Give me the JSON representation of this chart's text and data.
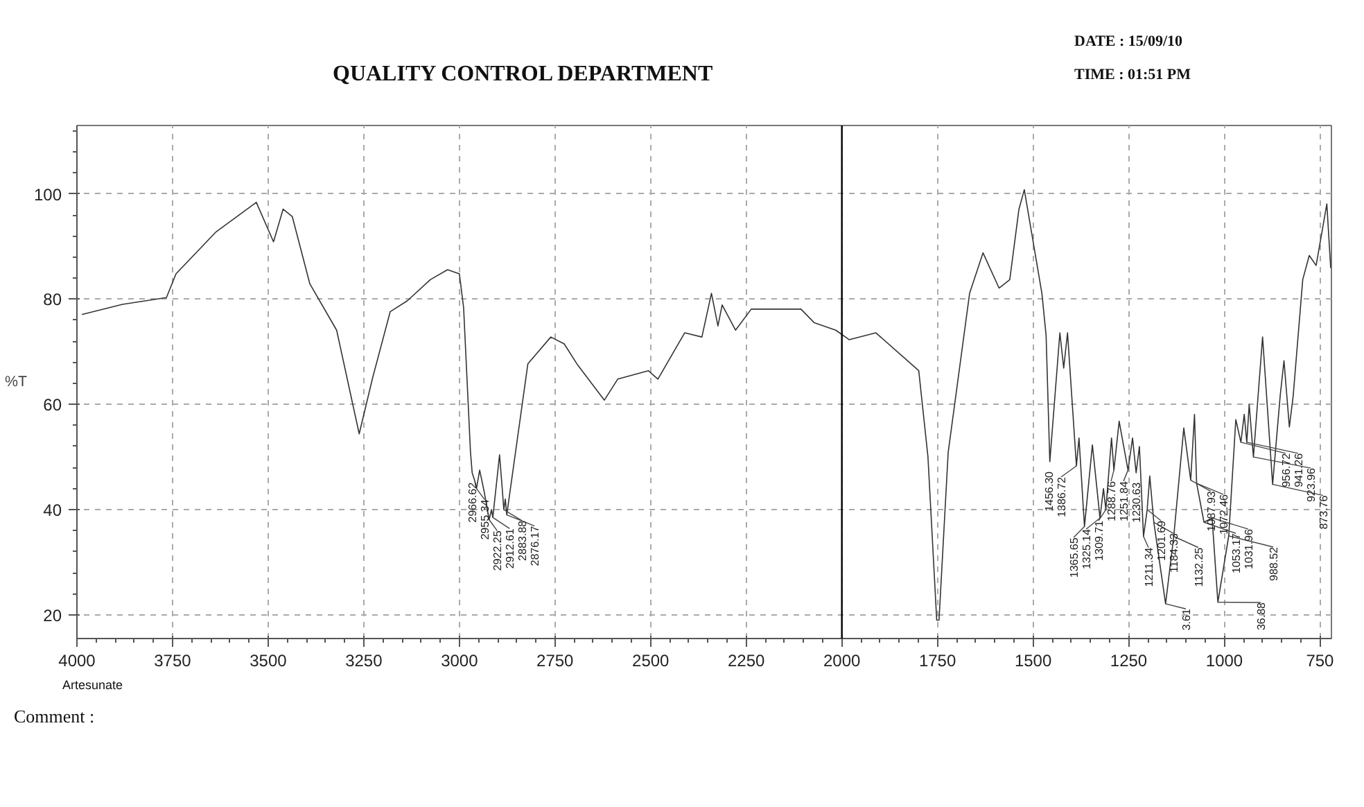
{
  "chart_data": {
    "type": "line",
    "title": "QUALITY CONTROL DEPARTMENT",
    "ylabel": "%T",
    "annotations": [
      "DATE : 15/09/10",
      "TIME : 01:51 PM",
      "Artesunate",
      "Comment :",
      {
        "text": "2966.62",
        "x": 2966.62,
        "y": 47
      },
      {
        "text": "2955.34",
        "x": 2955.34,
        "y": 44
      },
      {
        "text": "2922.25",
        "x": 2922.25,
        "y": 38.1
      },
      {
        "text": "2912.61",
        "x": 2912.61,
        "y": 38.5
      },
      {
        "text": "2883.88",
        "x": 2883.88,
        "y": 40
      },
      {
        "text": "2876.17",
        "x": 2876.17,
        "y": 39
      },
      {
        "text": "1456.30",
        "x": 1456.3,
        "y": 49.1
      },
      {
        "text": "1386.72",
        "x": 1386.72,
        "y": 48.3
      },
      {
        "text": "1365.65",
        "x": 1365.65,
        "y": 36.8
      },
      {
        "text": "1325.14",
        "x": 1325.14,
        "y": 38.4
      },
      {
        "text": "1309.71",
        "x": 1309.71,
        "y": 40
      },
      {
        "text": "1288.76",
        "x": 1288.76,
        "y": 47.5
      },
      {
        "text": "1251.84",
        "x": 1251.84,
        "y": 47.5
      },
      {
        "text": "1230.63",
        "x": 1230.63,
        "y": 47
      },
      {
        "text": "1211.34",
        "x": 1211.34,
        "y": 34.9
      },
      {
        "text": "1201.69",
        "x": 1201.69,
        "y": 40
      },
      {
        "text": "1184.33",
        "x": 1184.33,
        "y": 37.6
      },
      {
        "text": "3.61",
        "x": 1153.61,
        "y": 22.1
      },
      {
        "text": "1132.25",
        "x": 1132.25,
        "y": 34.9
      },
      {
        "text": "1087.93",
        "x": 1087.93,
        "y": 45.6
      },
      {
        "text": "1072.46",
        "x": 1072.46,
        "y": 45
      },
      {
        "text": "1053.17",
        "x": 1053.17,
        "y": 37.6
      },
      {
        "text": "1031.96",
        "x": 1031.96,
        "y": 38.4
      },
      {
        "text": "36.88",
        "x": 1016.88,
        "y": 22.4
      },
      {
        "text": "988.52",
        "x": 988.52,
        "y": 35
      },
      {
        "text": "956.72",
        "x": 956.72,
        "y": 52.8
      },
      {
        "text": "941.26",
        "x": 941.26,
        "y": 52.8
      },
      {
        "text": "923.96",
        "x": 923.96,
        "y": 50
      },
      {
        "text": "873.76",
        "x": 873.76,
        "y": 44.8
      }
    ],
    "x": [
      3986,
      3881,
      3766,
      3741,
      3636,
      3531,
      3486,
      3461,
      3437,
      3391,
      3321,
      3262,
      3227,
      3181,
      3136,
      3076,
      3031,
      3000,
      2989,
      2971,
      2966.62,
      2960,
      2955.34,
      2947,
      2936,
      2922.25,
      2916,
      2912.61,
      2895,
      2888,
      2883.88,
      2880,
      2876.17,
      2821,
      2761,
      2726,
      2691,
      2621,
      2586,
      2506,
      2481,
      2411,
      2366,
      2341,
      2324,
      2313,
      2278,
      2237,
      2191,
      2107,
      2072,
      2016,
      1981,
      1911,
      1841,
      1799,
      1775,
      1752,
      1746,
      1722,
      1666,
      1631,
      1589,
      1561,
      1537,
      1523,
      1477,
      1466,
      1456.3,
      1430,
      1420,
      1410,
      1386.72,
      1380,
      1365.65,
      1345,
      1325.14,
      1316,
      1309.71,
      1295,
      1288.76,
      1275,
      1251.84,
      1240,
      1230.63,
      1222,
      1211.34,
      1201.69,
      1195,
      1184.33,
      1153.61,
      1132.25,
      1106,
      1087.93,
      1078,
      1072.46,
      1053.17,
      1031.96,
      1016.88,
      988.52,
      970,
      956.72,
      948,
      941.26,
      935,
      923.96,
      900,
      873.76,
      854,
      844,
      830,
      820,
      795,
      778,
      760,
      732,
      722
    ],
    "series": [
      {
        "color": "#333333",
        "values": [
          77.1,
          79,
          80.3,
          84.8,
          92.8,
          98.4,
          90.9,
          97.1,
          95.7,
          82.9,
          74.1,
          54.4,
          65,
          77.6,
          79.7,
          83.7,
          85.6,
          84.8,
          78.4,
          50.9,
          47,
          45.5,
          44,
          47.5,
          43.7,
          38.1,
          40,
          38.5,
          50.4,
          44,
          40,
          42,
          39,
          67.7,
          72.8,
          71.5,
          67.5,
          60.8,
          64.8,
          66.4,
          64.8,
          73.6,
          72.8,
          81.1,
          74.9,
          78.9,
          74.1,
          78.1,
          78.1,
          78.1,
          75.5,
          74.1,
          72.3,
          73.6,
          69.1,
          66.4,
          50.1,
          19,
          19,
          50.9,
          81.1,
          88.8,
          82.1,
          83.7,
          97.1,
          100.8,
          81.1,
          73.1,
          49.1,
          73.6,
          66.9,
          73.6,
          48.3,
          53.6,
          36.8,
          52.3,
          38.4,
          44,
          40,
          53.6,
          47.5,
          56.8,
          47.5,
          53.6,
          47,
          52,
          34.9,
          40,
          46.4,
          37.6,
          22.1,
          34.9,
          55.5,
          45.6,
          58.1,
          45,
          37.6,
          38.4,
          22.4,
          35,
          57.1,
          52.8,
          58.1,
          52.8,
          60,
          50,
          72.8,
          44.8,
          61.6,
          68.3,
          55.7,
          61.6,
          83.7,
          88.3,
          86.4,
          98.1,
          86
        ]
      }
    ],
    "xlim": [
      4000,
      720
    ],
    "ylim": [
      15.5,
      113
    ],
    "xticks": [
      4000,
      3750,
      3500,
      3250,
      3000,
      2750,
      2500,
      2250,
      2000,
      1750,
      1500,
      1250,
      1000,
      750,
      {
        "value": 3950,
        "label": null
      },
      {
        "value": 3900,
        "label": null
      },
      {
        "value": 3850,
        "label": null
      },
      {
        "value": 3800,
        "label": null
      },
      {
        "value": 3700,
        "label": null
      },
      {
        "value": 3650,
        "label": null
      },
      {
        "value": 3600,
        "label": null
      },
      {
        "value": 3550,
        "label": null
      },
      {
        "value": 3450,
        "label": null
      },
      {
        "value": 3400,
        "label": null
      },
      {
        "value": 3350,
        "label": null
      },
      {
        "value": 3300,
        "label": null
      },
      {
        "value": 3200,
        "label": null
      },
      {
        "value": 3150,
        "label": null
      },
      {
        "value": 3100,
        "label": null
      },
      {
        "value": 3050,
        "label": null
      },
      {
        "value": 2950,
        "label": null
      },
      {
        "value": 2900,
        "label": null
      },
      {
        "value": 2850,
        "label": null
      },
      {
        "value": 2800,
        "label": null
      },
      {
        "value": 2700,
        "label": null
      },
      {
        "value": 2650,
        "label": null
      },
      {
        "value": 2600,
        "label": null
      },
      {
        "value": 2550,
        "label": null
      },
      {
        "value": 2450,
        "label": null
      },
      {
        "value": 2400,
        "label": null
      },
      {
        "value": 2350,
        "label": null
      },
      {
        "value": 2300,
        "label": null
      },
      {
        "value": 2200,
        "label": null
      },
      {
        "value": 2150,
        "label": null
      },
      {
        "value": 2100,
        "label": null
      },
      {
        "value": 2050,
        "label": null
      },
      {
        "value": 1950,
        "label": null
      },
      {
        "value": 1900,
        "label": null
      },
      {
        "value": 1850,
        "label": null
      },
      {
        "value": 1800,
        "label": null
      },
      {
        "value": 1700,
        "label": null
      },
      {
        "value": 1650,
        "label": null
      },
      {
        "value": 1600,
        "label": null
      },
      {
        "value": 1550,
        "label": null
      },
      {
        "value": 1450,
        "label": null
      },
      {
        "value": 1400,
        "label": null
      },
      {
        "value": 1350,
        "label": null
      },
      {
        "value": 1300,
        "label": null
      },
      {
        "value": 1200,
        "label": null
      },
      {
        "value": 1150,
        "label": null
      },
      {
        "value": 1100,
        "label": null
      },
      {
        "value": 1050,
        "label": null
      },
      {
        "value": 950,
        "label": null
      },
      {
        "value": 900,
        "label": null
      },
      {
        "value": 850,
        "label": null
      },
      {
        "value": 800,
        "label": null
      }
    ],
    "yticks": [
      20,
      40,
      60,
      80,
      100,
      {
        "value": 24,
        "label": null
      },
      {
        "value": 28,
        "label": null
      },
      {
        "value": 32,
        "label": null
      },
      {
        "value": 36,
        "label": null
      },
      {
        "value": 44,
        "label": null
      },
      {
        "value": 48,
        "label": null
      },
      {
        "value": 52,
        "label": null
      },
      {
        "value": 56,
        "label": null
      },
      {
        "value": 64,
        "label": null
      },
      {
        "value": 68,
        "label": null
      },
      {
        "value": 72,
        "label": null
      },
      {
        "value": 76,
        "label": null
      },
      {
        "value": 84,
        "label": null
      },
      {
        "value": 88,
        "label": null
      },
      {
        "value": 92,
        "label": null
      },
      {
        "value": 96,
        "label": null
      },
      {
        "value": 104,
        "label": null
      },
      {
        "value": 108,
        "label": null
      },
      {
        "value": 112,
        "label": null
      }
    ],
    "grid": true,
    "line_style": "solid",
    "marker": "none",
    "ref_lines": [
      {
        "axis": "x",
        "value": 2000,
        "color": "#000000"
      }
    ]
  }
}
